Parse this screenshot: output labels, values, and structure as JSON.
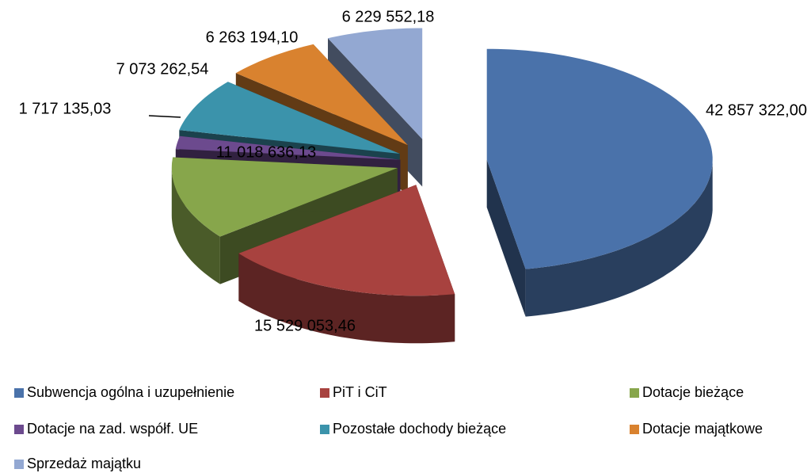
{
  "chart_data": {
    "type": "pie",
    "categories": [
      "Subwencja ogólna i uzupełnienie",
      "PiT i CiT",
      "Dotacje bieżące",
      "Dotacje na zad. współf. UE",
      "Pozostałe dochody bieżące",
      "Dotacje majątkowe",
      "Sprzedaż majątku"
    ],
    "values": [
      42857322.0,
      15529053.46,
      11018636.13,
      1717135.03,
      7073262.54,
      6263194.1,
      6229552.18
    ],
    "value_labels": [
      "42 857 322,00",
      "15 529 053,46",
      "11 018 636,13",
      "1 717 135,03",
      "7 073 262,54",
      "6 263 194,10",
      "6 229 552,18"
    ],
    "colors": [
      "#4a72aa",
      "#a8423f",
      "#87a64b",
      "#6c4a8e",
      "#3b93ab",
      "#d9822f",
      "#93a8d2"
    ],
    "legend": "bottom"
  }
}
